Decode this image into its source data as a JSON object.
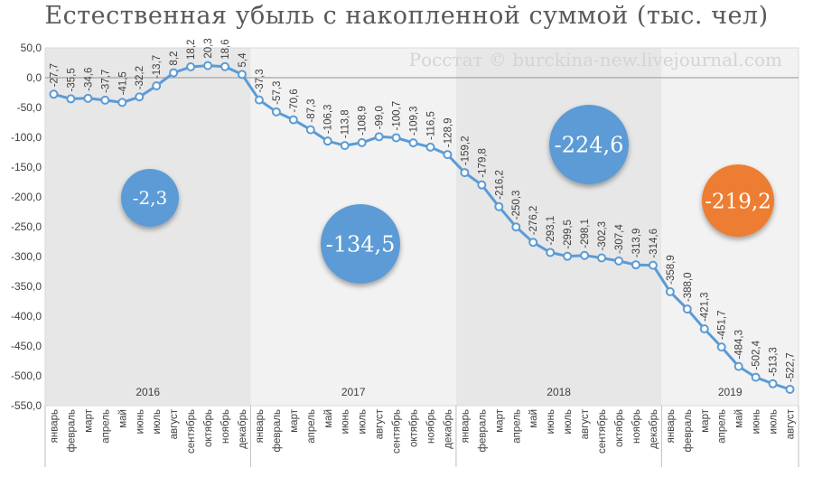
{
  "title": "Естественная убыль с накопленной суммой (тыс. чел)",
  "watermark": "Росстат © burckina-new.livejournal.com",
  "colors": {
    "line": "#5b9bd5",
    "bubble_blue": "#5b9bd5",
    "bubble_orange": "#ed7d31",
    "band_dark": "#e7e7e7",
    "band_light": "#f2f2f2"
  },
  "chart_data": {
    "type": "line",
    "title": "Естественная убыль с накопленной суммой (тыс. чел)",
    "ylim": [
      -550,
      50
    ],
    "yticks": [
      "50,0",
      "0,0",
      "-50,0",
      "-100,0",
      "-150,0",
      "-200,0",
      "-250,0",
      "-300,0",
      "-350,0",
      "-400,0",
      "-450,0",
      "-500,0",
      "-550,0"
    ],
    "grid": false,
    "legend": "none",
    "years": [
      {
        "label": "2016",
        "total": "-2,3",
        "months": [
          "январь",
          "февраль",
          "март",
          "апрель",
          "май",
          "июнь",
          "июль",
          "август",
          "сентябрь",
          "октябрь",
          "ноябрь",
          "декабрь"
        ],
        "values": [
          -27.7,
          -35.5,
          -34.6,
          -37.7,
          -41.5,
          -32.2,
          -13.7,
          8.2,
          18.2,
          20.3,
          18.6,
          5.4
        ],
        "labels": [
          "-27,7",
          "-35,5",
          "-34,6",
          "-37,7",
          "-41,5",
          "-32,2",
          "-13,7",
          "8,2",
          "18,2",
          "20,3",
          "18,6",
          "5,4"
        ]
      },
      {
        "label": "2017",
        "total": "-134,5",
        "months": [
          "январь",
          "февраль",
          "март",
          "апрель",
          "май",
          "июнь",
          "июль",
          "август",
          "сентябрь",
          "октябрь",
          "ноябрь",
          "декабрь"
        ],
        "values": [
          -37.3,
          -57.3,
          -70.6,
          -87.3,
          -106.3,
          -113.8,
          -108.9,
          -99.0,
          -100.7,
          -109.3,
          -116.5,
          -128.9
        ],
        "labels": [
          "-37,3",
          "-57,3",
          "-70,6",
          "-87,3",
          "-106,3",
          "-113,8",
          "-108,9",
          "-99,0",
          "-100,7",
          "-109,3",
          "-116,5",
          "-128,9"
        ]
      },
      {
        "label": "2018",
        "total": "-224,6",
        "months": [
          "январь",
          "февраль",
          "март",
          "апрель",
          "май",
          "июнь",
          "июль",
          "август",
          "сентябрь",
          "октябрь",
          "ноябрь",
          "декабрь"
        ],
        "values": [
          -159.2,
          -179.8,
          -216.2,
          -250.3,
          -276.2,
          -293.1,
          -299.5,
          -298.1,
          -302.3,
          -307.4,
          -313.9,
          -314.6
        ],
        "labels": [
          "-159,2",
          "-179,8",
          "-216,2",
          "-250,3",
          "-276,2",
          "-293,1",
          "-299,5",
          "-298,1",
          "-302,3",
          "-307,4",
          "-313,9",
          "-314,6"
        ]
      },
      {
        "label": "2019",
        "total": "-219,2",
        "months": [
          "январь",
          "февраль",
          "март",
          "апрель",
          "май",
          "июнь",
          "июль",
          "август"
        ],
        "values": [
          -358.9,
          -388.0,
          -421.3,
          -451.7,
          -484.3,
          -502.4,
          -513.3,
          -522.7
        ],
        "labels": [
          "-358,9",
          "-388,0",
          "-421,3",
          "-451,7",
          "-484,3",
          "-502,4",
          "-513,3",
          "-522,7"
        ]
      }
    ]
  }
}
